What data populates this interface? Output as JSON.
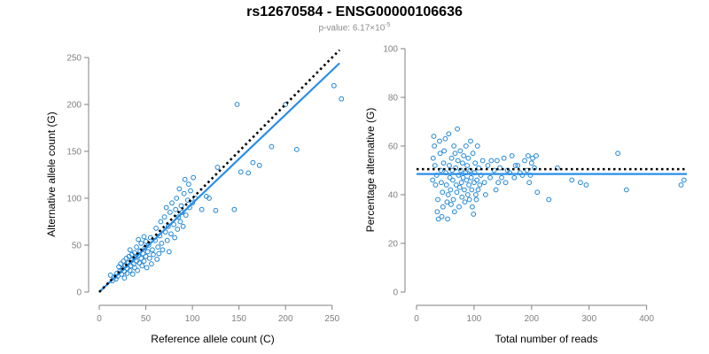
{
  "title": "rs12670584 - ENSG00000106636",
  "subtitle": {
    "prefix": "p-value: ",
    "mantissa": "6.17×10",
    "exponent": "-5"
  },
  "colors": {
    "points": "#1f86d6",
    "fit": "#2a8ee8",
    "reference": "#000000",
    "axis": "#808080"
  },
  "chart_data": [
    {
      "type": "scatter",
      "name": "allele-counts",
      "title": "",
      "xlabel": "Reference allele count (C)",
      "ylabel": "Alternative allele count (G)",
      "xlim": [
        0,
        255
      ],
      "ylim": [
        0,
        250
      ],
      "xticks": [
        0,
        50,
        100,
        150,
        200,
        250
      ],
      "yticks": [
        0,
        50,
        100,
        150,
        200,
        250
      ],
      "points": [
        [
          12,
          18
        ],
        [
          14,
          12
        ],
        [
          16,
          16
        ],
        [
          18,
          14
        ],
        [
          19,
          20
        ],
        [
          20,
          17
        ],
        [
          21,
          27
        ],
        [
          22,
          22
        ],
        [
          23,
          30
        ],
        [
          24,
          19
        ],
        [
          25,
          25
        ],
        [
          26,
          33
        ],
        [
          27,
          15
        ],
        [
          27,
          22
        ],
        [
          28,
          28
        ],
        [
          29,
          36
        ],
        [
          30,
          20
        ],
        [
          30,
          25
        ],
        [
          31,
          31
        ],
        [
          32,
          38
        ],
        [
          33,
          23
        ],
        [
          33,
          45
        ],
        [
          34,
          28
        ],
        [
          35,
          34
        ],
        [
          35,
          40
        ],
        [
          36,
          19
        ],
        [
          37,
          30
        ],
        [
          38,
          42
        ],
        [
          38,
          26
        ],
        [
          39,
          37
        ],
        [
          40,
          33
        ],
        [
          40,
          48
        ],
        [
          41,
          23
        ],
        [
          42,
          39
        ],
        [
          42,
          56
        ],
        [
          43,
          31
        ],
        [
          44,
          44
        ],
        [
          45,
          36
        ],
        [
          45,
          52
        ],
        [
          46,
          28
        ],
        [
          47,
          41
        ],
        [
          48,
          59
        ],
        [
          48,
          33
        ],
        [
          49,
          47
        ],
        [
          50,
          38
        ],
        [
          50,
          54
        ],
        [
          51,
          26
        ],
        [
          52,
          43
        ],
        [
          53,
          50
        ],
        [
          54,
          36
        ],
        [
          55,
          58
        ],
        [
          56,
          30
        ],
        [
          57,
          45
        ],
        [
          58,
          40
        ],
        [
          60,
          55
        ],
        [
          61,
          68
        ],
        [
          62,
          35
        ],
        [
          63,
          48
        ],
        [
          64,
          41
        ],
        [
          65,
          60
        ],
        [
          66,
          75
        ],
        [
          67,
          52
        ],
        [
          68,
          45
        ],
        [
          70,
          80
        ],
        [
          71,
          64
        ],
        [
          72,
          90
        ],
        [
          73,
          55
        ],
        [
          74,
          70
        ],
        [
          75,
          43
        ],
        [
          76,
          85
        ],
        [
          77,
          62
        ],
        [
          78,
          95
        ],
        [
          80,
          72
        ],
        [
          81,
          58
        ],
        [
          82,
          88
        ],
        [
          83,
          100
        ],
        [
          84,
          67
        ],
        [
          85,
          80
        ],
        [
          86,
          110
        ],
        [
          87,
          75
        ],
        [
          88,
          92
        ],
        [
          89,
          85
        ],
        [
          90,
          70
        ],
        [
          91,
          105
        ],
        [
          92,
          120
        ],
        [
          93,
          82
        ],
        [
          95,
          98
        ],
        [
          96,
          115
        ],
        [
          97,
          90
        ],
        [
          98,
          108
        ],
        [
          100,
          95
        ],
        [
          101,
          122
        ],
        [
          103,
          100
        ],
        [
          110,
          88
        ],
        [
          115,
          102
        ],
        [
          118,
          100
        ],
        [
          125,
          87
        ],
        [
          127,
          133
        ],
        [
          145,
          88
        ],
        [
          148,
          200
        ],
        [
          152,
          128
        ],
        [
          160,
          127
        ],
        [
          165,
          138
        ],
        [
          172,
          135
        ],
        [
          185,
          155
        ],
        [
          200,
          200
        ],
        [
          212,
          152
        ],
        [
          252,
          220
        ],
        [
          260,
          206
        ]
      ],
      "fit_line": [
        [
          0,
          0
        ],
        [
          258,
          244
        ]
      ],
      "reference_line": [
        [
          0,
          0
        ],
        [
          258,
          258
        ]
      ]
    },
    {
      "type": "scatter",
      "name": "percentage-alternative",
      "title": "",
      "xlabel": "Total number of reads",
      "ylabel": "Percentage alternative (G)",
      "xlim": [
        0,
        470
      ],
      "ylim": [
        0,
        100
      ],
      "xticks": [
        0,
        100,
        200,
        300,
        400
      ],
      "yticks": [
        0,
        20,
        40,
        60,
        80,
        100
      ],
      "points": [
        [
          28,
          46
        ],
        [
          29,
          55
        ],
        [
          30,
          64
        ],
        [
          31,
          60
        ],
        [
          32,
          52
        ],
        [
          33,
          44
        ],
        [
          35,
          48
        ],
        [
          36,
          33
        ],
        [
          37,
          38
        ],
        [
          38,
          30
        ],
        [
          40,
          62
        ],
        [
          41,
          57
        ],
        [
          42,
          50
        ],
        [
          43,
          45
        ],
        [
          44,
          31
        ],
        [
          45,
          41
        ],
        [
          46,
          35
        ],
        [
          47,
          53
        ],
        [
          48,
          58
        ],
        [
          50,
          63
        ],
        [
          51,
          49
        ],
        [
          52,
          44
        ],
        [
          53,
          37
        ],
        [
          54,
          30
        ],
        [
          55,
          40
        ],
        [
          56,
          65
        ],
        [
          57,
          52
        ],
        [
          58,
          47
        ],
        [
          59,
          42
        ],
        [
          60,
          36
        ],
        [
          61,
          55
        ],
        [
          62,
          50
        ],
        [
          63,
          46
        ],
        [
          64,
          38
        ],
        [
          65,
          60
        ],
        [
          66,
          33
        ],
        [
          67,
          57
        ],
        [
          68,
          51
        ],
        [
          69,
          44
        ],
        [
          70,
          41
        ],
        [
          71,
          67
        ],
        [
          72,
          54
        ],
        [
          73,
          48
        ],
        [
          74,
          35
        ],
        [
          75,
          43
        ],
        [
          76,
          58
        ],
        [
          77,
          50
        ],
        [
          78,
          45
        ],
        [
          79,
          39
        ],
        [
          80,
          53
        ],
        [
          81,
          47
        ],
        [
          82,
          56
        ],
        [
          83,
          42
        ],
        [
          84,
          37
        ],
        [
          85,
          49
        ],
        [
          86,
          60
        ],
        [
          87,
          46
        ],
        [
          88,
          52
        ],
        [
          89,
          40
        ],
        [
          90,
          55
        ],
        [
          91,
          44
        ],
        [
          92,
          38
        ],
        [
          93,
          50
        ],
        [
          94,
          62
        ],
        [
          95,
          47
        ],
        [
          96,
          42
        ],
        [
          97,
          35
        ],
        [
          98,
          57
        ],
        [
          99,
          32
        ],
        [
          100,
          45
        ],
        [
          101,
          49
        ],
        [
          102,
          53
        ],
        [
          103,
          40
        ],
        [
          104,
          38
        ],
        [
          105,
          46
        ],
        [
          106,
          60
        ],
        [
          107,
          42
        ],
        [
          108,
          51
        ],
        [
          110,
          44
        ],
        [
          112,
          48
        ],
        [
          115,
          54
        ],
        [
          118,
          45
        ],
        [
          120,
          40
        ],
        [
          124,
          52
        ],
        [
          128,
          47
        ],
        [
          130,
          54
        ],
        [
          135,
          50
        ],
        [
          138,
          42
        ],
        [
          140,
          54
        ],
        [
          142,
          45
        ],
        [
          145,
          51
        ],
        [
          148,
          47
        ],
        [
          152,
          55
        ],
        [
          155,
          45
        ],
        [
          158,
          50
        ],
        [
          162,
          49
        ],
        [
          166,
          56
        ],
        [
          170,
          47
        ],
        [
          172,
          52
        ],
        [
          176,
          52
        ],
        [
          180,
          49
        ],
        [
          184,
          48
        ],
        [
          188,
          54
        ],
        [
          192,
          50
        ],
        [
          194,
          56
        ],
        [
          196,
          45
        ],
        [
          198,
          48
        ],
        [
          200,
          53
        ],
        [
          202,
          55
        ],
        [
          205,
          51
        ],
        [
          208,
          56
        ],
        [
          210,
          41
        ],
        [
          230,
          38
        ],
        [
          245,
          51
        ],
        [
          270,
          46
        ],
        [
          285,
          45
        ],
        [
          295,
          44
        ],
        [
          350,
          57
        ],
        [
          365,
          42
        ],
        [
          460,
          44
        ],
        [
          465,
          46
        ]
      ],
      "fit_line": [
        [
          0,
          48.5
        ],
        [
          470,
          48.5
        ]
      ],
      "reference_line": [
        [
          0,
          50.5
        ],
        [
          470,
          50.5
        ]
      ]
    }
  ]
}
